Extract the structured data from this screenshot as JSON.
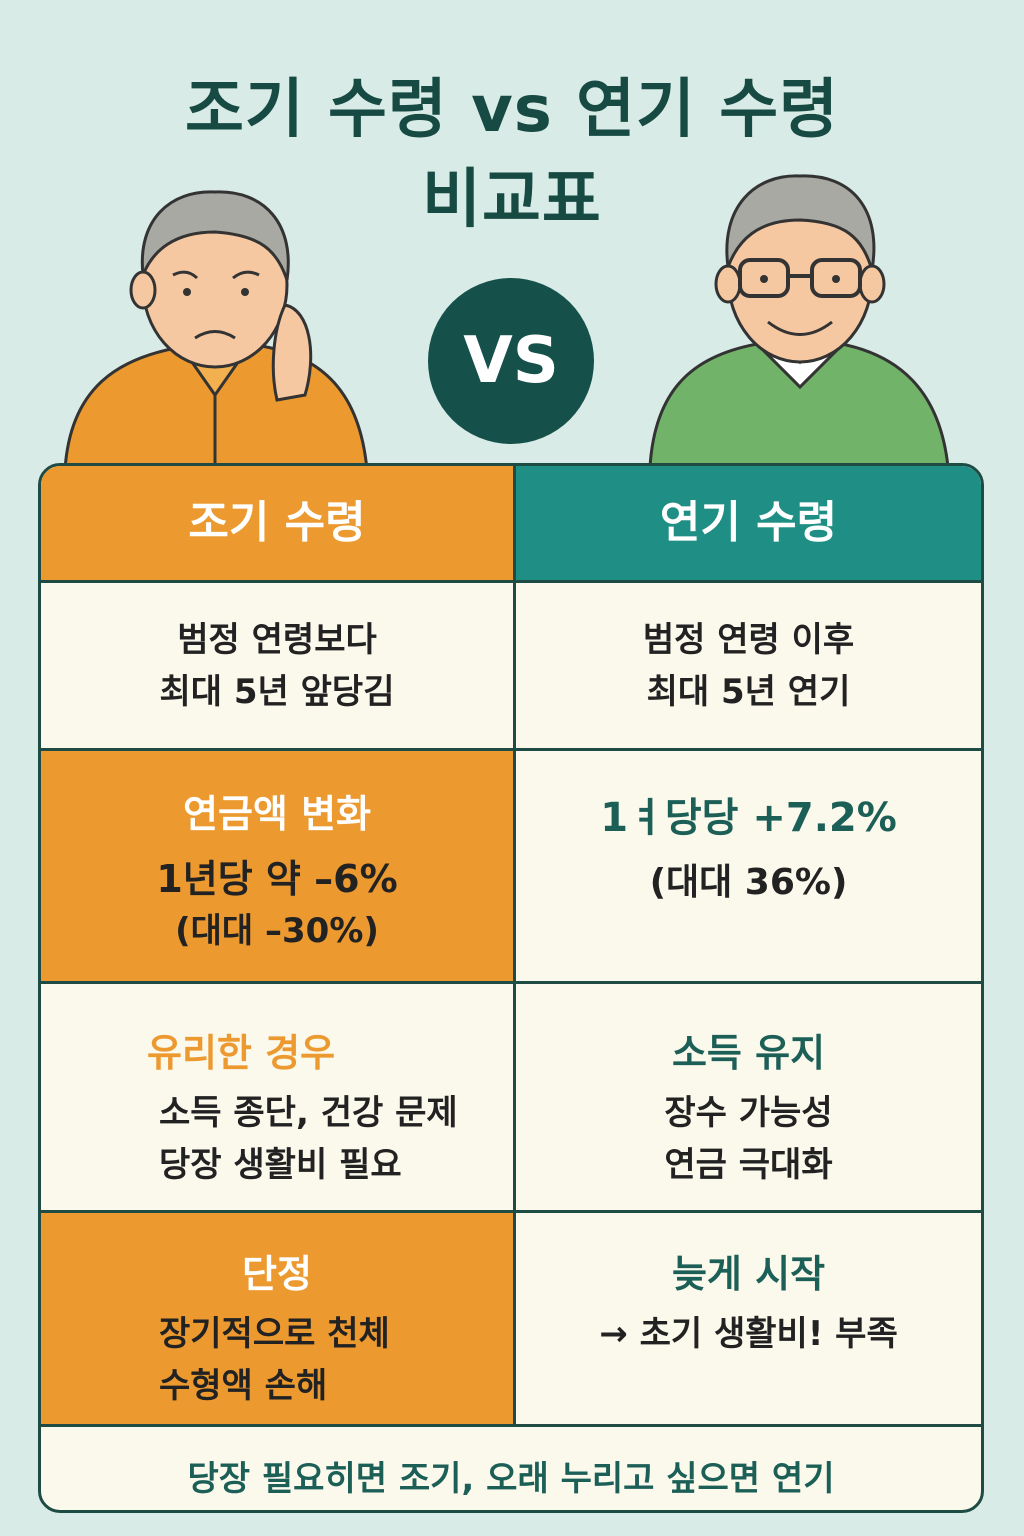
{
  "title": {
    "line1": "조기 수령 vs 연기 수령",
    "line2": "비교표"
  },
  "vs_badge": "VS",
  "illustrations": {
    "left": "worried-elderly-man",
    "right": "smiling-elderly-man-glasses"
  },
  "table": {
    "headers": {
      "early": "조기 수령",
      "deferred": "연기 수령"
    },
    "row1": {
      "early": [
        "범정 연령보다",
        "최대 5년 앞당김"
      ],
      "deferred": [
        "범정 연령 이후",
        "최대 5년 연기"
      ]
    },
    "row2": {
      "early_title": "연금액 변화",
      "early_lines": [
        "1년당 약 –6%",
        "(대대 –30%)"
      ],
      "deferred_lines": [
        "1ㅕ당당 +7.2%",
        "(대대 36%)"
      ]
    },
    "row3": {
      "early_title": "유리한 경우",
      "early_lines": [
        "소득 종단, 건강 문제",
        "당장 생활비 필요"
      ],
      "deferred_title": "소득 유지",
      "deferred_lines": [
        "장수 가능성",
        "연금 극대화"
      ]
    },
    "row4": {
      "early_title": "단정",
      "early_lines": [
        "장기적으로 천체",
        "수형액 손해"
      ],
      "deferred_title": "늦게 시작",
      "deferred_lines": [
        "→ 초기 생활비! 부족"
      ]
    },
    "footer": "당장 필요히면 조기, 오래 누리고 싶으면 연기"
  },
  "colors": {
    "orange": "#ec9a30",
    "teal": "#1f8f85",
    "dark_teal": "#164a43",
    "cream": "#fbf8ec",
    "background": "#d9ebe6"
  }
}
